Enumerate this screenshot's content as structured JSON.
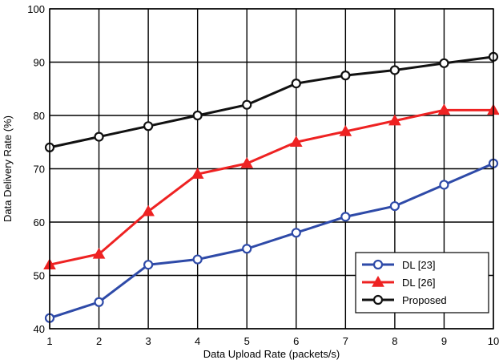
{
  "chart_data": {
    "type": "line",
    "title": "",
    "xlabel": "Data Upload Rate (packets/s)",
    "ylabel": "Data Delivery Rate (%)",
    "x": [
      1,
      2,
      3,
      4,
      5,
      6,
      7,
      8,
      9,
      10
    ],
    "xlim": [
      1,
      10
    ],
    "ylim": [
      40,
      100
    ],
    "xticks": [
      "1",
      "2",
      "3",
      "4",
      "5",
      "6",
      "7",
      "8",
      "9",
      "10"
    ],
    "yticks": [
      "40",
      "50",
      "60",
      "70",
      "80",
      "90",
      "100"
    ],
    "grid": true,
    "legend_position": "bottom-right",
    "series": [
      {
        "name": "DL [23]",
        "color": "#2e4aa8",
        "marker": "circle",
        "values": [
          42,
          45,
          52,
          53,
          55,
          58,
          61,
          63,
          67,
          71
        ]
      },
      {
        "name": "DL [26]",
        "color": "#ee2222",
        "marker": "triangle",
        "values": [
          52,
          54,
          62,
          69,
          71,
          75,
          77,
          79,
          81,
          81
        ]
      },
      {
        "name": "Proposed",
        "color": "#111111",
        "marker": "circle",
        "values": [
          74,
          76,
          78,
          80,
          82,
          86,
          87.5,
          88.5,
          89.8,
          91
        ]
      }
    ]
  }
}
